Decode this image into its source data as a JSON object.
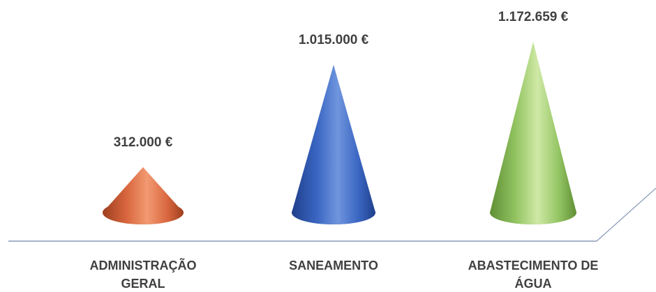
{
  "chart_data": {
    "type": "bar",
    "style": "3d-cone",
    "title": "",
    "xlabel": "",
    "ylabel": "",
    "ylim": [
      0,
      1172659
    ],
    "grid": false,
    "legend": "none",
    "categories": [
      [
        "ADMINISTRAÇÃO",
        "GERAL"
      ],
      [
        "SANEAMENTO"
      ],
      [
        "ABASTECIMENTO DE",
        "ÁGUA"
      ]
    ],
    "values": [
      312000,
      1015000,
      1172659
    ],
    "data_labels": [
      "312.000 €",
      "1.015.000 €",
      "1.172.659 €"
    ],
    "colors": [
      {
        "light": "#f29a72",
        "base": "#d9673f",
        "dark": "#9e3f1e"
      },
      {
        "light": "#6f95dd",
        "base": "#3a66c2",
        "dark": "#1f3f8a"
      },
      {
        "light": "#cfe9a6",
        "base": "#93c462",
        "dark": "#5f8f34"
      }
    ],
    "axis_color": "#8898b8"
  }
}
